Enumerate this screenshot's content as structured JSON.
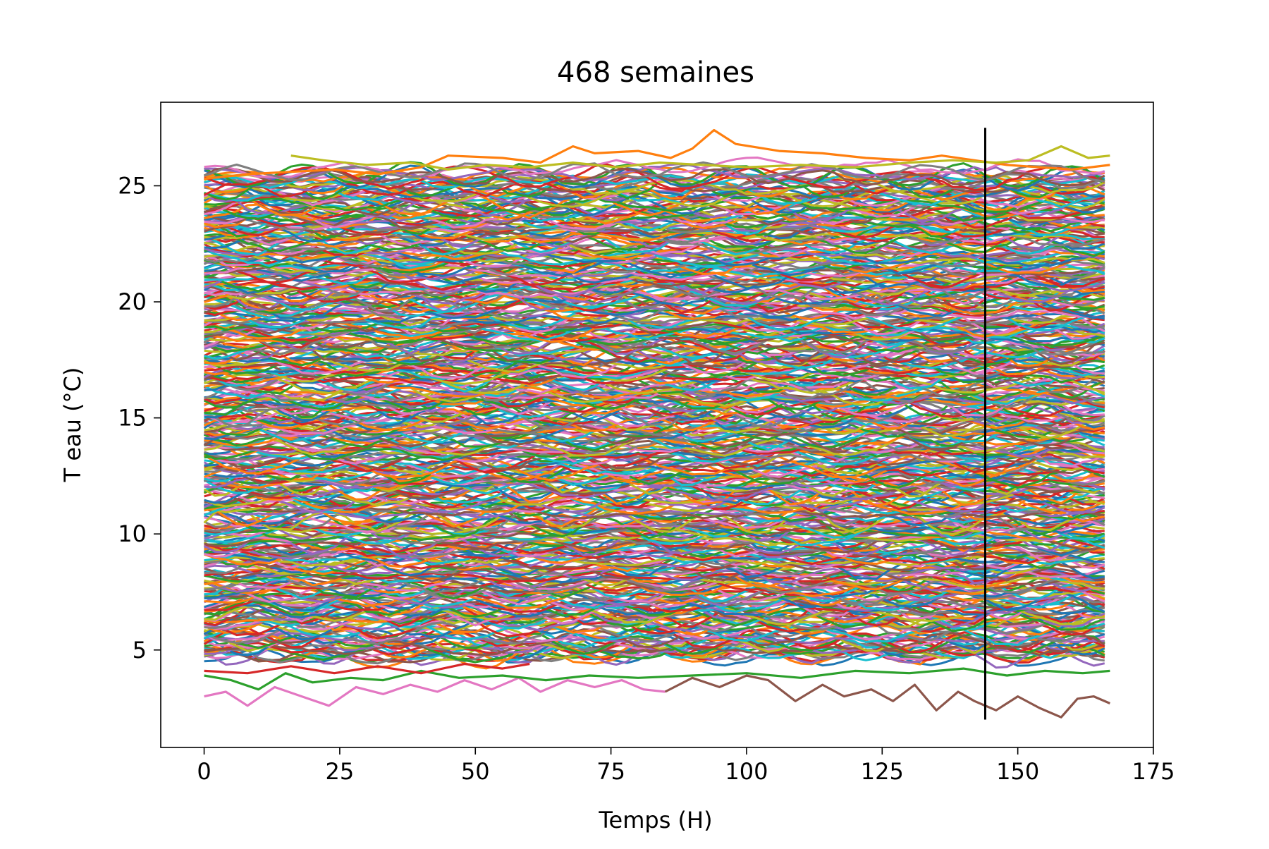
{
  "chart_data": {
    "type": "line",
    "title": "468 semaines",
    "xlabel": "Temps (H)",
    "ylabel": "T eau (°C)",
    "xlim": [
      -8,
      175
    ],
    "ylim": [
      0.8,
      28.6
    ],
    "x_ticks": [
      0,
      25,
      50,
      75,
      100,
      125,
      150,
      175
    ],
    "y_ticks": [
      5,
      10,
      15,
      20,
      25
    ],
    "x_tick_labels": [
      "0",
      "25",
      "50",
      "75",
      "100",
      "125",
      "150",
      "175"
    ],
    "y_tick_labels": [
      "5",
      "10",
      "15",
      "20",
      "25"
    ],
    "grid": false,
    "legend": "none",
    "series_count": 468,
    "x_range": [
      0,
      167
    ],
    "y_range_approx": [
      2.1,
      27.4
    ],
    "vertical_line": {
      "x": 144,
      "y_from": 2.0,
      "y_to": 27.5,
      "color": "#000000"
    },
    "palette": [
      "#1f77b4",
      "#ff7f0e",
      "#2ca02c",
      "#d62728",
      "#9467bd",
      "#8c564b",
      "#e377c2",
      "#7f7f7f",
      "#bcbd22",
      "#17becf"
    ],
    "highlight_series": [
      {
        "points": [
          [
            0,
            3.0
          ],
          [
            4,
            3.2
          ],
          [
            8,
            2.6
          ],
          [
            13,
            3.4
          ],
          [
            18,
            3.0
          ],
          [
            23,
            2.6
          ],
          [
            28,
            3.4
          ],
          [
            33,
            3.1
          ],
          [
            38,
            3.5
          ],
          [
            43,
            3.2
          ],
          [
            48,
            3.7
          ],
          [
            53,
            3.3
          ],
          [
            58,
            3.8
          ],
          [
            62,
            3.2
          ],
          [
            67,
            3.7
          ],
          [
            72,
            3.4
          ],
          [
            77,
            3.7
          ],
          [
            81,
            3.3
          ],
          [
            85,
            3.2
          ]
        ],
        "color": "#e377c2"
      },
      {
        "points": [
          [
            85,
            3.2
          ],
          [
            90,
            3.8
          ],
          [
            95,
            3.4
          ],
          [
            100,
            3.9
          ],
          [
            104,
            3.7
          ],
          [
            109,
            2.8
          ],
          [
            114,
            3.5
          ],
          [
            118,
            3.0
          ],
          [
            123,
            3.3
          ],
          [
            127,
            2.8
          ],
          [
            131,
            3.5
          ],
          [
            135,
            2.4
          ],
          [
            139,
            3.2
          ],
          [
            142,
            2.8
          ],
          [
            146,
            2.4
          ],
          [
            150,
            3.0
          ],
          [
            154,
            2.5
          ],
          [
            158,
            2.1
          ],
          [
            161,
            2.9
          ],
          [
            164,
            3.0
          ],
          [
            167,
            2.7
          ]
        ],
        "color": "#8c564b"
      },
      {
        "points": [
          [
            0,
            3.9
          ],
          [
            5,
            3.7
          ],
          [
            10,
            3.3
          ],
          [
            15,
            4.0
          ],
          [
            20,
            3.6
          ],
          [
            27,
            3.8
          ],
          [
            33,
            3.7
          ],
          [
            40,
            4.1
          ],
          [
            47,
            3.8
          ],
          [
            55,
            3.9
          ],
          [
            63,
            3.7
          ],
          [
            71,
            3.9
          ],
          [
            80,
            3.8
          ],
          [
            90,
            3.9
          ],
          [
            100,
            4.0
          ],
          [
            110,
            3.8
          ],
          [
            120,
            4.1
          ],
          [
            130,
            4.0
          ],
          [
            140,
            4.2
          ],
          [
            148,
            3.9
          ],
          [
            155,
            4.1
          ],
          [
            162,
            4.0
          ],
          [
            167,
            4.1
          ]
        ],
        "color": "#2ca02c"
      },
      {
        "points": [
          [
            0,
            4.1
          ],
          [
            8,
            4.0
          ],
          [
            16,
            4.3
          ],
          [
            24,
            4.0
          ],
          [
            32,
            4.3
          ],
          [
            40,
            4.0
          ],
          [
            48,
            4.4
          ],
          [
            55,
            4.2
          ],
          [
            60,
            4.4
          ]
        ],
        "color": "#d62728"
      },
      {
        "points": [
          [
            0,
            25.3
          ],
          [
            8,
            25.5
          ],
          [
            16,
            25.6
          ],
          [
            24,
            25.7
          ],
          [
            32,
            25.5
          ],
          [
            40,
            25.8
          ],
          [
            45,
            26.3
          ],
          [
            55,
            26.2
          ],
          [
            62,
            26.0
          ],
          [
            68,
            26.7
          ],
          [
            72,
            26.4
          ],
          [
            80,
            26.5
          ],
          [
            86,
            26.2
          ],
          [
            90,
            26.6
          ],
          [
            94,
            27.4
          ],
          [
            98,
            26.8
          ],
          [
            106,
            26.5
          ],
          [
            114,
            26.4
          ],
          [
            122,
            26.2
          ],
          [
            130,
            26.1
          ],
          [
            136,
            26.3
          ],
          [
            142,
            26.1
          ],
          [
            148,
            25.9
          ],
          [
            154,
            25.8
          ],
          [
            160,
            25.7
          ],
          [
            167,
            25.9
          ]
        ],
        "color": "#ff7f0e"
      },
      {
        "points": [
          [
            16,
            26.3
          ],
          [
            22,
            26.1
          ],
          [
            30,
            25.9
          ],
          [
            38,
            26.0
          ],
          [
            45,
            25.7
          ],
          [
            52,
            25.9
          ],
          [
            60,
            25.8
          ],
          [
            68,
            26.0
          ],
          [
            76,
            25.8
          ],
          [
            84,
            26.0
          ],
          [
            92,
            25.9
          ],
          [
            100,
            25.8
          ],
          [
            110,
            25.9
          ],
          [
            120,
            25.8
          ],
          [
            130,
            26.0
          ],
          [
            138,
            26.1
          ],
          [
            146,
            26.0
          ],
          [
            152,
            26.1
          ],
          [
            158,
            26.7
          ],
          [
            163,
            26.2
          ],
          [
            167,
            26.3
          ]
        ],
        "color": "#bcbd22"
      }
    ]
  }
}
